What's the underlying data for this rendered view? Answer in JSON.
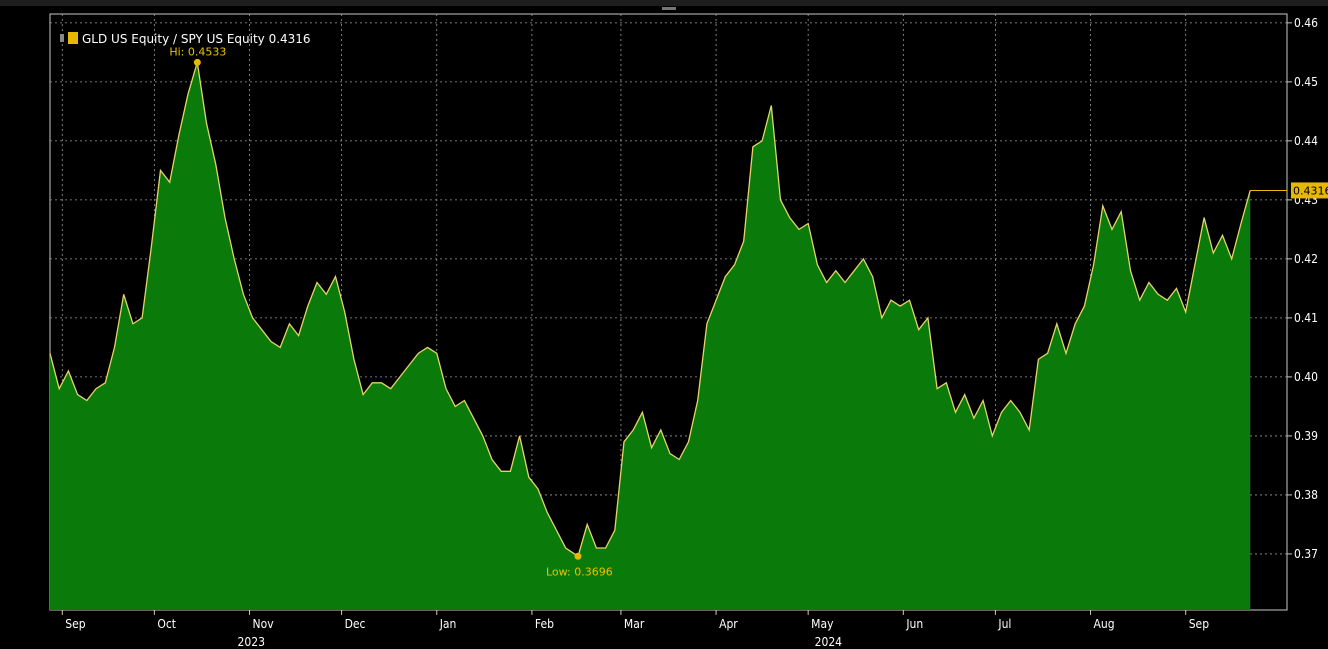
{
  "chart_data": {
    "type": "area",
    "legend": {
      "label": "GLD US Equity / SPY US Equity 0.4316",
      "placement": "top-left"
    },
    "colors": {
      "background": "#000000",
      "fill": "#0a7a0a",
      "line": "#e6d36a",
      "grid": "#9a9a9a",
      "accent": "#e6b800"
    },
    "grid": true,
    "ylim": [
      0.3605,
      0.4615
    ],
    "y_ticks": [
      0.37,
      0.38,
      0.39,
      0.4,
      0.41,
      0.42,
      0.43,
      0.44,
      0.45,
      0.46
    ],
    "y_tick_labels": [
      "0.37",
      "0.38",
      "0.39",
      "0.40",
      "0.41",
      "0.42",
      "0.43",
      "0.44",
      "0.45",
      "0.46"
    ],
    "x_ticks": [
      {
        "label": "Sep",
        "date": "2023-09-01"
      },
      {
        "label": "Oct",
        "date": "2023-10-01"
      },
      {
        "label": "Nov",
        "date": "2023-11-01"
      },
      {
        "label": "Dec",
        "date": "2023-12-01"
      },
      {
        "label": "Jan",
        "date": "2024-01-01"
      },
      {
        "label": "Feb",
        "date": "2024-02-01"
      },
      {
        "label": "Mar",
        "date": "2024-03-01"
      },
      {
        "label": "Apr",
        "date": "2024-04-01"
      },
      {
        "label": "May",
        "date": "2024-05-01"
      },
      {
        "label": "Jun",
        "date": "2024-06-01"
      },
      {
        "label": "Jul",
        "date": "2024-07-01"
      },
      {
        "label": "Aug",
        "date": "2024-08-01"
      },
      {
        "label": "Sep",
        "date": "2024-09-01"
      }
    ],
    "year_labels": [
      {
        "label": "2023",
        "date": "2023-11-01"
      },
      {
        "label": "2024",
        "date": "2024-05-07"
      }
    ],
    "annotations": {
      "high": {
        "label": "Hi: 0.4533",
        "date": "2023-10-15",
        "value": 0.4533
      },
      "low": {
        "label": "Low: 0.3696",
        "date": "2024-02-16",
        "value": 0.3696
      },
      "last": {
        "label": "0.4316",
        "value": 0.4316
      }
    },
    "series": [
      {
        "name": "GLD US Equity / SPY US Equity",
        "x": [
          "2023-08-28",
          "2023-08-31",
          "2023-09-03",
          "2023-09-06",
          "2023-09-09",
          "2023-09-12",
          "2023-09-15",
          "2023-09-18",
          "2023-09-21",
          "2023-09-24",
          "2023-09-27",
          "2023-09-30",
          "2023-10-03",
          "2023-10-06",
          "2023-10-09",
          "2023-10-12",
          "2023-10-15",
          "2023-10-18",
          "2023-10-21",
          "2023-10-24",
          "2023-10-27",
          "2023-10-30",
          "2023-11-02",
          "2023-11-05",
          "2023-11-08",
          "2023-11-11",
          "2023-11-14",
          "2023-11-17",
          "2023-11-20",
          "2023-11-23",
          "2023-11-26",
          "2023-11-29",
          "2023-12-02",
          "2023-12-05",
          "2023-12-08",
          "2023-12-11",
          "2023-12-14",
          "2023-12-17",
          "2023-12-20",
          "2023-12-23",
          "2023-12-26",
          "2023-12-29",
          "2024-01-01",
          "2024-01-04",
          "2024-01-07",
          "2024-01-10",
          "2024-01-13",
          "2024-01-16",
          "2024-01-19",
          "2024-01-22",
          "2024-01-25",
          "2024-01-28",
          "2024-01-31",
          "2024-02-03",
          "2024-02-06",
          "2024-02-09",
          "2024-02-12",
          "2024-02-16",
          "2024-02-19",
          "2024-02-22",
          "2024-02-25",
          "2024-02-28",
          "2024-03-02",
          "2024-03-05",
          "2024-03-08",
          "2024-03-11",
          "2024-03-14",
          "2024-03-17",
          "2024-03-20",
          "2024-03-23",
          "2024-03-26",
          "2024-03-29",
          "2024-04-01",
          "2024-04-04",
          "2024-04-07",
          "2024-04-10",
          "2024-04-13",
          "2024-04-16",
          "2024-04-19",
          "2024-04-22",
          "2024-04-25",
          "2024-04-28",
          "2024-05-01",
          "2024-05-04",
          "2024-05-07",
          "2024-05-10",
          "2024-05-13",
          "2024-05-16",
          "2024-05-19",
          "2024-05-22",
          "2024-05-25",
          "2024-05-28",
          "2024-05-31",
          "2024-06-03",
          "2024-06-06",
          "2024-06-09",
          "2024-06-12",
          "2024-06-15",
          "2024-06-18",
          "2024-06-21",
          "2024-06-24",
          "2024-06-27",
          "2024-06-30",
          "2024-07-03",
          "2024-07-06",
          "2024-07-09",
          "2024-07-12",
          "2024-07-15",
          "2024-07-18",
          "2024-07-21",
          "2024-07-24",
          "2024-07-27",
          "2024-07-30",
          "2024-08-02",
          "2024-08-05",
          "2024-08-08",
          "2024-08-11",
          "2024-08-14",
          "2024-08-17",
          "2024-08-20",
          "2024-08-23",
          "2024-08-26",
          "2024-08-29",
          "2024-09-01",
          "2024-09-04",
          "2024-09-07",
          "2024-09-10",
          "2024-09-13",
          "2024-09-16",
          "2024-09-19",
          "2024-09-22"
        ],
        "y": [
          0.404,
          0.398,
          0.401,
          0.397,
          0.396,
          0.398,
          0.399,
          0.405,
          0.414,
          0.409,
          0.41,
          0.422,
          0.435,
          0.433,
          0.441,
          0.448,
          0.4533,
          0.443,
          0.436,
          0.427,
          0.42,
          0.414,
          0.41,
          0.408,
          0.406,
          0.405,
          0.409,
          0.407,
          0.412,
          0.416,
          0.414,
          0.417,
          0.411,
          0.403,
          0.397,
          0.399,
          0.399,
          0.398,
          0.4,
          0.402,
          0.404,
          0.405,
          0.404,
          0.398,
          0.395,
          0.396,
          0.393,
          0.39,
          0.386,
          0.384,
          0.384,
          0.39,
          0.383,
          0.381,
          0.377,
          0.374,
          0.371,
          0.3696,
          0.375,
          0.371,
          0.371,
          0.374,
          0.389,
          0.391,
          0.394,
          0.388,
          0.391,
          0.387,
          0.386,
          0.389,
          0.396,
          0.409,
          0.413,
          0.417,
          0.419,
          0.423,
          0.439,
          0.44,
          0.446,
          0.43,
          0.427,
          0.425,
          0.426,
          0.419,
          0.416,
          0.418,
          0.416,
          0.418,
          0.42,
          0.417,
          0.41,
          0.413,
          0.412,
          0.413,
          0.408,
          0.41,
          0.398,
          0.399,
          0.394,
          0.397,
          0.393,
          0.396,
          0.39,
          0.394,
          0.396,
          0.394,
          0.391,
          0.403,
          0.404,
          0.409,
          0.404,
          0.409,
          0.412,
          0.419,
          0.429,
          0.425,
          0.428,
          0.418,
          0.413,
          0.416,
          0.414,
          0.413,
          0.415,
          0.411,
          0.419,
          0.427,
          0.421,
          0.424,
          0.42,
          0.426,
          0.4316
        ]
      }
    ]
  }
}
